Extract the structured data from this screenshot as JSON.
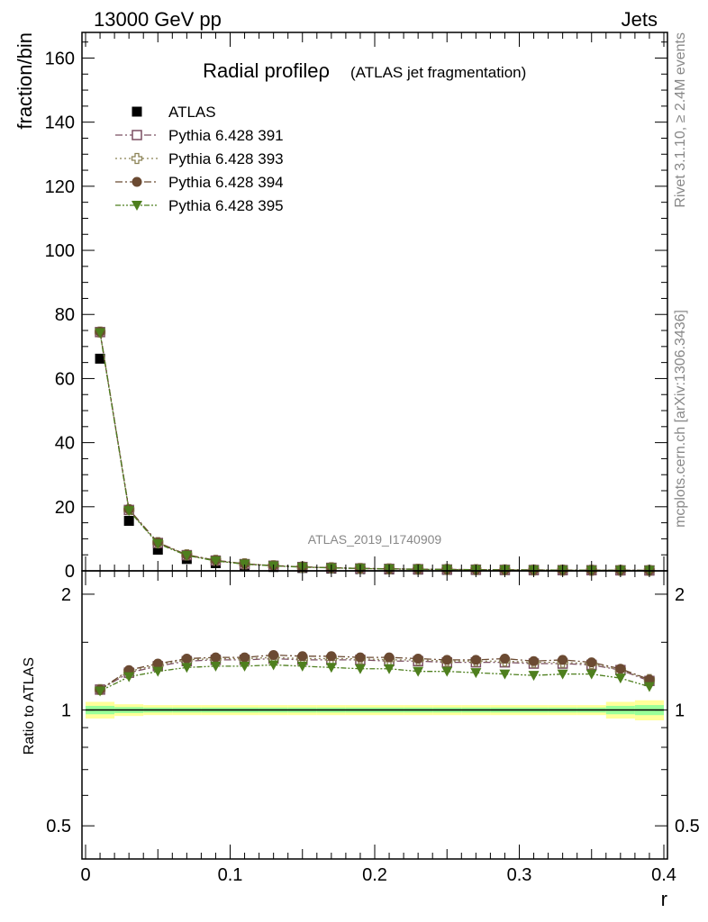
{
  "header": {
    "left": "13000 GeV pp",
    "right": "Jets"
  },
  "side": {
    "rivet": "Rivet 3.1.10, ≥ 2.4M events",
    "mcplots": "mcplots.cern.ch [arXiv:1306.3436]"
  },
  "chart_data": [
    {
      "type": "scatter",
      "panel": "main",
      "title": "Radial profileρ",
      "subtitle": "(ATLAS jet fragmentation)",
      "ylabel": "fraction/bin",
      "xlabel": "r",
      "watermark": "ATLAS_2019_I1740909",
      "xlim": [
        -0.0025,
        0.4025
      ],
      "ylim": [
        0,
        168
      ],
      "yticks": [
        0,
        20,
        40,
        60,
        80,
        100,
        120,
        140,
        160
      ],
      "legend_position": "top-left",
      "x": [
        0.01,
        0.03,
        0.05,
        0.07,
        0.09,
        0.11,
        0.13,
        0.15,
        0.17,
        0.19,
        0.21,
        0.23,
        0.25,
        0.27,
        0.29,
        0.31,
        0.33,
        0.35,
        0.37,
        0.39
      ],
      "series": [
        {
          "name": "ATLAS",
          "marker": "square-filled",
          "color": "#000000",
          "line": "none",
          "values": [
            66.2,
            15.6,
            6.6,
            3.7,
            2.4,
            1.6,
            1.2,
            0.9,
            0.7,
            0.55,
            0.45,
            0.38,
            0.32,
            0.27,
            0.23,
            0.2,
            0.17,
            0.15,
            0.13,
            0.11
          ]
        },
        {
          "name": "Pythia 6.428 391",
          "marker": "square-open",
          "color": "#7b4f62",
          "line": "dash-dot",
          "values": [
            74.5,
            19.0,
            8.7,
            4.9,
            3.2,
            2.1,
            1.6,
            1.2,
            0.95,
            0.75,
            0.62,
            0.52,
            0.43,
            0.37,
            0.31,
            0.27,
            0.23,
            0.2,
            0.17,
            0.14
          ]
        },
        {
          "name": "Pythia 6.428 393",
          "marker": "cross-open",
          "color": "#8b8255",
          "line": "dot",
          "values": [
            74.5,
            19.1,
            8.8,
            5.0,
            3.3,
            2.2,
            1.6,
            1.2,
            0.96,
            0.76,
            0.62,
            0.52,
            0.44,
            0.37,
            0.32,
            0.27,
            0.23,
            0.2,
            0.17,
            0.14
          ]
        },
        {
          "name": "Pythia 6.428 394",
          "marker": "circle-filled",
          "color": "#6b4a32",
          "line": "dash-dot",
          "values": [
            74.6,
            19.2,
            8.9,
            5.0,
            3.3,
            2.2,
            1.65,
            1.25,
            0.97,
            0.77,
            0.63,
            0.53,
            0.44,
            0.38,
            0.32,
            0.28,
            0.24,
            0.2,
            0.17,
            0.14
          ]
        },
        {
          "name": "Pythia 6.428 395",
          "marker": "triangle-down-filled",
          "color": "#4e7f1e",
          "line": "dash-dot-dot",
          "values": [
            74.3,
            18.8,
            8.5,
            4.8,
            3.1,
            2.1,
            1.55,
            1.17,
            0.92,
            0.72,
            0.59,
            0.49,
            0.41,
            0.35,
            0.3,
            0.26,
            0.22,
            0.19,
            0.16,
            0.13
          ]
        }
      ]
    },
    {
      "type": "scatter",
      "panel": "ratio",
      "ylabel": "Ratio to ATLAS",
      "xlabel": "r",
      "xlim": [
        -0.0025,
        0.4025
      ],
      "ylim": [
        0.41,
        2.3
      ],
      "yscale": "log",
      "yticks": [
        0.5,
        1,
        2
      ],
      "ytick_labels": [
        "0.5",
        "1",
        "2"
      ],
      "xticks": [
        0,
        0.1,
        0.2,
        0.3,
        0.4
      ],
      "xtick_labels": [
        "0",
        "0.1",
        "0.2",
        "0.3",
        "0.4"
      ],
      "band_inner_halfwidth": [
        0.025,
        0.018,
        0.015,
        0.015,
        0.015,
        0.015,
        0.015,
        0.015,
        0.015,
        0.015,
        0.015,
        0.015,
        0.015,
        0.015,
        0.015,
        0.015,
        0.015,
        0.015,
        0.025,
        0.03
      ],
      "band_outer_halfwidth": [
        0.05,
        0.035,
        0.03,
        0.03,
        0.03,
        0.03,
        0.03,
        0.03,
        0.03,
        0.03,
        0.03,
        0.03,
        0.03,
        0.03,
        0.03,
        0.03,
        0.03,
        0.03,
        0.05,
        0.06
      ],
      "band_colors": {
        "outer": "#ffff99",
        "inner": "#99ff99"
      },
      "x": [
        0.01,
        0.03,
        0.05,
        0.07,
        0.09,
        0.11,
        0.13,
        0.15,
        0.17,
        0.19,
        0.21,
        0.23,
        0.25,
        0.27,
        0.29,
        0.31,
        0.33,
        0.35,
        0.37,
        0.39
      ],
      "series": [
        {
          "name": "ATLAS",
          "values": [
            1,
            1,
            1,
            1,
            1,
            1,
            1,
            1,
            1,
            1,
            1,
            1,
            1,
            1,
            1,
            1,
            1,
            1,
            1,
            1
          ],
          "color": "#000000",
          "marker": "none",
          "line": "solid"
        },
        {
          "name": "Pythia 6.428 391",
          "marker": "square-open",
          "color": "#7b4f62",
          "line": "dash-dot",
          "values": [
            1.13,
            1.25,
            1.3,
            1.34,
            1.35,
            1.35,
            1.36,
            1.35,
            1.35,
            1.35,
            1.34,
            1.34,
            1.33,
            1.33,
            1.33,
            1.32,
            1.32,
            1.31,
            1.27,
            1.19
          ]
        },
        {
          "name": "Pythia 6.428 393",
          "marker": "cross-open",
          "color": "#8b8255",
          "line": "dot",
          "values": [
            1.13,
            1.26,
            1.31,
            1.35,
            1.36,
            1.36,
            1.37,
            1.36,
            1.36,
            1.36,
            1.35,
            1.35,
            1.34,
            1.34,
            1.34,
            1.33,
            1.33,
            1.32,
            1.27,
            1.2
          ]
        },
        {
          "name": "Pythia 6.428 394",
          "marker": "circle-filled",
          "color": "#6b4a32",
          "line": "dash-dot",
          "values": [
            1.13,
            1.27,
            1.32,
            1.36,
            1.37,
            1.37,
            1.39,
            1.38,
            1.38,
            1.37,
            1.37,
            1.36,
            1.35,
            1.35,
            1.36,
            1.34,
            1.35,
            1.33,
            1.28,
            1.2
          ]
        },
        {
          "name": "Pythia 6.428 395",
          "marker": "triangle-down-filled",
          "color": "#4e7f1e",
          "line": "dash-dot-dot",
          "values": [
            1.12,
            1.22,
            1.26,
            1.29,
            1.3,
            1.3,
            1.31,
            1.3,
            1.29,
            1.28,
            1.28,
            1.26,
            1.26,
            1.25,
            1.24,
            1.23,
            1.24,
            1.24,
            1.21,
            1.15
          ]
        }
      ]
    }
  ]
}
